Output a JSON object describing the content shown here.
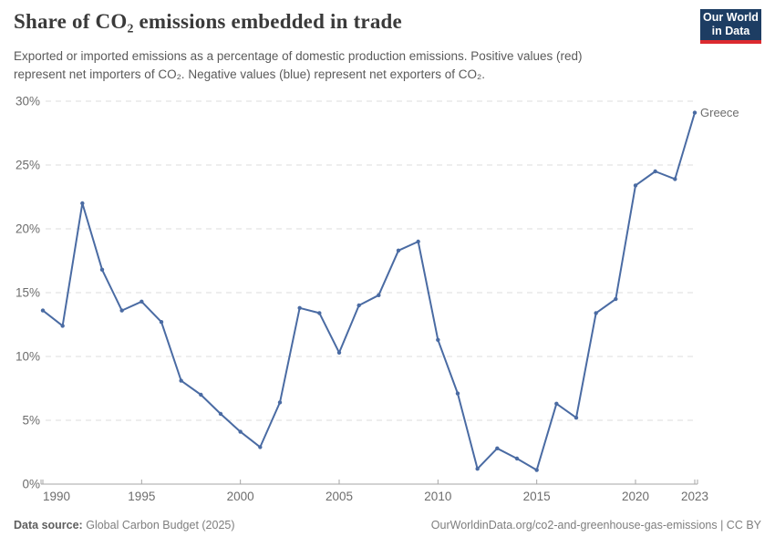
{
  "header": {
    "title": "Share of CO₂ emissions embedded in trade",
    "subtitle_lines": [
      "Exported or imported emissions as a percentage of domestic production emissions. Positive values (red)",
      "represent net importers of CO₂. Negative values (blue) represent net exporters of CO₂."
    ],
    "logo": {
      "line1": "Our World",
      "line2": "in Data"
    }
  },
  "chart_data": {
    "type": "line",
    "title": "Share of CO₂ emissions embedded in trade",
    "x": [
      1990,
      1991,
      1992,
      1993,
      1994,
      1995,
      1996,
      1997,
      1998,
      1999,
      2000,
      2001,
      2002,
      2003,
      2004,
      2005,
      2006,
      2007,
      2008,
      2009,
      2010,
      2011,
      2012,
      2013,
      2014,
      2015,
      2016,
      2017,
      2018,
      2019,
      2020,
      2021,
      2022,
      2023
    ],
    "series": [
      {
        "name": "Greece",
        "values": [
          13.6,
          12.4,
          22.0,
          16.8,
          13.6,
          14.3,
          12.7,
          8.1,
          7.0,
          5.5,
          4.1,
          2.9,
          6.4,
          13.8,
          13.4,
          10.3,
          14.0,
          14.8,
          18.3,
          19.0,
          11.3,
          7.1,
          1.2,
          2.8,
          2.0,
          1.1,
          6.3,
          5.2,
          13.4,
          14.5,
          23.4,
          24.5,
          23.9,
          29.1
        ]
      }
    ],
    "xlabel": "",
    "ylabel": "",
    "xlim": [
      1990,
      2023
    ],
    "ylim": [
      0,
      30
    ],
    "x_ticks": [
      1990,
      1995,
      2000,
      2005,
      2010,
      2015,
      2020,
      2023
    ],
    "y_ticks": [
      0,
      5,
      10,
      15,
      20,
      25,
      30
    ],
    "y_tick_suffix": "%",
    "grid": "horizontal-dashed",
    "legend_position": "end-of-line-label",
    "line_color": "#4a6ba3",
    "entity_label_color": "#5b80c0",
    "grid_color": "#dcdcdc",
    "axis_color": "#a6a6a6"
  },
  "footer": {
    "source_label": "Data source:",
    "source_value": "Global Carbon Budget (2025)",
    "attribution": "OurWorldinData.org/co2-and-greenhouse-gas-emissions | CC BY"
  }
}
